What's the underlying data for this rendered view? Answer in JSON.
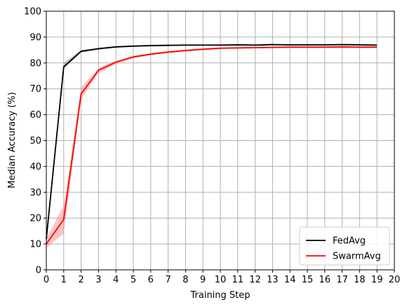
{
  "chart_data": {
    "type": "line",
    "title": "",
    "xlabel": "Training Step",
    "ylabel": "Median Accuracy (%)",
    "xlim": [
      0,
      20
    ],
    "ylim": [
      0,
      100
    ],
    "x_ticks": [
      "0",
      "1",
      "2",
      "3",
      "4",
      "5",
      "6",
      "7",
      "8",
      "9",
      "10",
      "11",
      "12",
      "13",
      "14",
      "15",
      "16",
      "17",
      "18",
      "19",
      "20"
    ],
    "y_ticks": [
      "0",
      "10",
      "20",
      "30",
      "40",
      "50",
      "60",
      "70",
      "80",
      "90",
      "100"
    ],
    "grid": true,
    "legend_position": "lower-right",
    "x": [
      0,
      1,
      2,
      3,
      4,
      5,
      6,
      7,
      8,
      9,
      10,
      11,
      12,
      13,
      14,
      15,
      16,
      17,
      18,
      19
    ],
    "series": [
      {
        "name": "FedAvg",
        "color": "#000000",
        "band_color": "#808080",
        "values": [
          12.0,
          78.5,
          84.5,
          85.5,
          86.2,
          86.5,
          86.7,
          86.8,
          86.9,
          86.9,
          86.9,
          87.0,
          86.9,
          87.1,
          87.0,
          87.0,
          87.0,
          87.1,
          87.0,
          86.9
        ],
        "lower": [
          10.0,
          77.5,
          84.0,
          85.1,
          85.9,
          86.2,
          86.4,
          86.5,
          86.6,
          86.6,
          86.6,
          86.7,
          86.6,
          86.8,
          86.7,
          86.7,
          86.7,
          86.8,
          86.7,
          86.6
        ],
        "upper": [
          14.0,
          80.0,
          85.0,
          85.9,
          86.5,
          86.8,
          87.0,
          87.1,
          87.2,
          87.2,
          87.2,
          87.3,
          87.2,
          87.4,
          87.3,
          87.3,
          87.3,
          87.4,
          87.3,
          87.2
        ]
      },
      {
        "name": "SwarmAvg",
        "color": "#ff0000",
        "band_color": "#f08080",
        "values": [
          10.0,
          19.5,
          68.0,
          77.2,
          80.3,
          82.3,
          83.4,
          84.2,
          84.8,
          85.3,
          85.7,
          85.8,
          85.9,
          86.0,
          86.1,
          86.1,
          86.1,
          86.2,
          86.1,
          86.1
        ],
        "lower": [
          8.5,
          14.0,
          66.0,
          76.0,
          79.5,
          81.8,
          83.0,
          83.8,
          84.4,
          84.9,
          85.3,
          85.5,
          85.6,
          85.7,
          85.8,
          85.8,
          85.8,
          85.9,
          85.8,
          85.8
        ],
        "upper": [
          12.0,
          25.0,
          70.5,
          78.0,
          81.0,
          82.8,
          83.8,
          84.6,
          85.2,
          85.7,
          86.0,
          86.1,
          86.2,
          86.3,
          86.4,
          86.4,
          86.4,
          86.5,
          86.4,
          86.4
        ]
      }
    ]
  }
}
